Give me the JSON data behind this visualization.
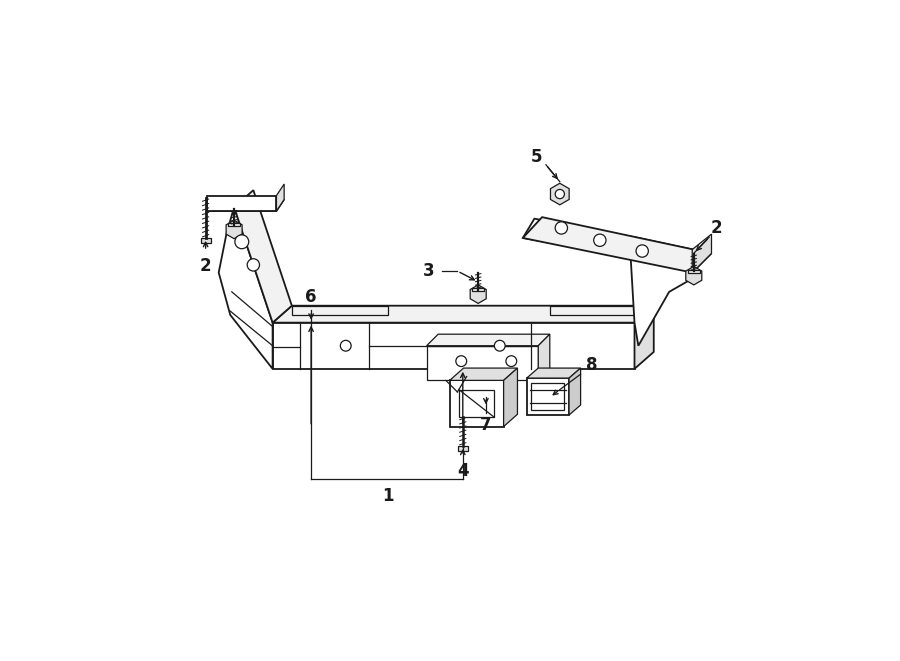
{
  "bg_color": "#ffffff",
  "line_color": "#1a1a1a",
  "font_size": 12,
  "lw_main": 1.3,
  "lw_thin": 0.9,
  "face_white": "#ffffff",
  "face_light": "#f2f2f2",
  "face_mid": "#e0e0e0",
  "face_dark": "#cccccc"
}
